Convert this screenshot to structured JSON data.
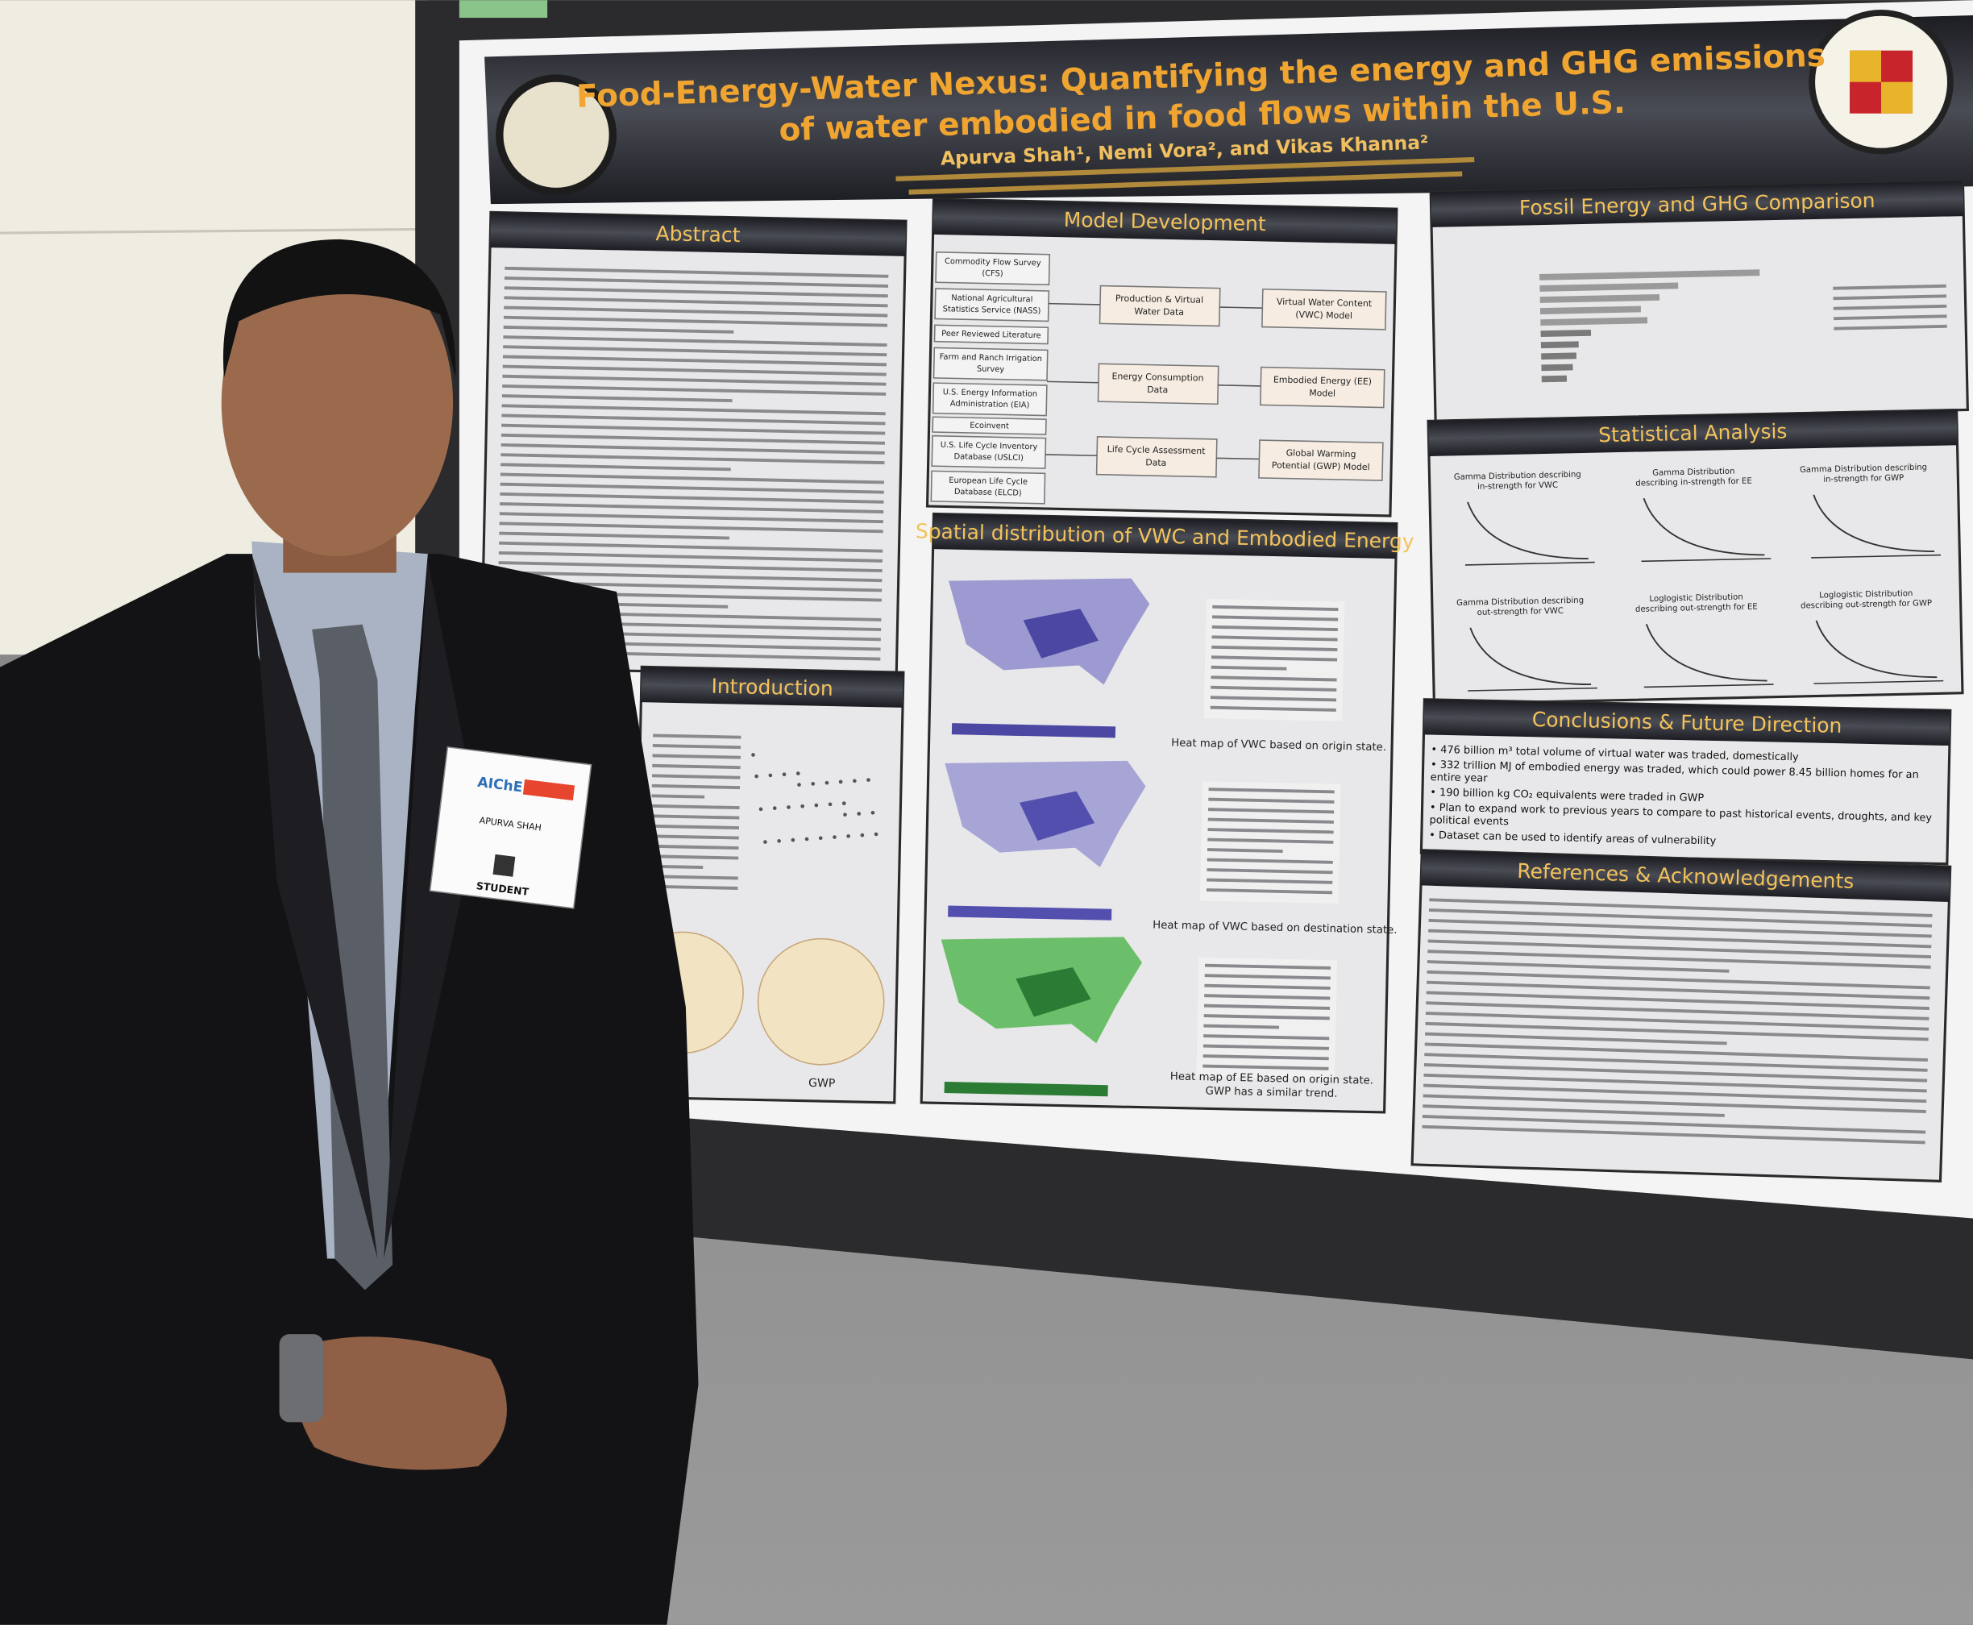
{
  "header": {
    "title": [
      "Food-Energy-Water Nexus: Quantifying the energy and GHG emissions",
      "of water embodied in food flows within the U.S."
    ],
    "authors": "Apurva Shah¹, Nemi Vora², and Vikas Khanna²"
  },
  "sections": {
    "abstract": "Abstract",
    "introduction": "Introduction",
    "model": "Model Development",
    "spatial": "Spatial distribution of VWC and Embodied Energy",
    "fossil": "Fossil Energy and GHG Comparison",
    "statistical": "Statistical Analysis",
    "conclusions": "Conclusions & Future Direction",
    "references": "References & Acknowledgements"
  },
  "model": {
    "sources": [
      [
        "Commodity Flow Survey",
        "(CFS)"
      ],
      [
        "National Agricultural",
        "Statistics Service (NASS)"
      ],
      [
        "Peer Reviewed Literature"
      ],
      [
        "Farm and Ranch Irrigation",
        "Survey"
      ],
      [
        "U.S. Energy Information",
        "Administration (EIA)"
      ],
      [
        "Ecoinvent"
      ],
      [
        "U.S. Life Cycle Inventory",
        "Database (USLCI)"
      ],
      [
        "European Life Cycle",
        "Database (ELCD)"
      ]
    ],
    "data": [
      [
        "Production & Virtual",
        "Water Data"
      ],
      [
        "Energy Consumption",
        "Data"
      ],
      [
        "Life Cycle Assessment",
        "Data"
      ]
    ],
    "models": [
      [
        "Virtual Water Content",
        "(VWC) Model"
      ],
      [
        "Embodied Energy (EE)",
        "Model"
      ],
      [
        "Global Warming",
        "Potential (GWP) Model"
      ]
    ]
  },
  "maps": {
    "captions": [
      [
        "Heat map of VWC based on origin state."
      ],
      [
        "Heat map of VWC based on destination state."
      ],
      [
        "Heat map of EE based on origin state.",
        "GWP has a similar trend."
      ]
    ]
  },
  "statistical": {
    "plots": [
      [
        "Gamma Distribution describing",
        "in-strength for VWC"
      ],
      [
        "Gamma Distribution",
        "describing in-strength for EE"
      ],
      [
        "Gamma Distribution describing",
        "in-strength for GWP"
      ],
      [
        "Gamma Distribution describing",
        "out-strength for VWC"
      ],
      [
        "Loglogistic Distribution",
        "describing out-strength for EE"
      ],
      [
        "Loglogistic Distribution",
        "describing out-strength for GWP"
      ]
    ]
  },
  "conclusions": [
    [
      "• 476 billion m³ total volume of virtual water was traded, domestically"
    ],
    [
      "• 332 trillion MJ of embodied energy was traded, which could power 8.45 billion homes for an",
      "entire year"
    ],
    [
      "• 190 billion kg CO₂ equivalents were traded in GWP"
    ],
    [
      "• Plan to expand work to previous years to compare to past historical events, droughts, and key",
      "political events"
    ],
    [
      "• Dataset can be used to identify areas of vulnerability"
    ]
  ],
  "introduction": {
    "gwp": "GWP"
  },
  "badge": {
    "brand": "AIChE",
    "name": "APURVA SHAH",
    "role": "STUDENT"
  }
}
